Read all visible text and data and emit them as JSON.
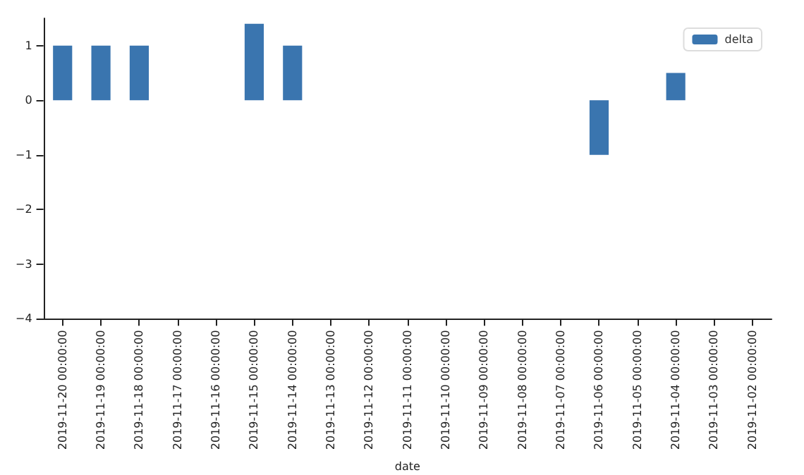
{
  "chart_data": {
    "type": "bar",
    "xlabel": "date",
    "categories": [
      "2019-11-20 00:00:00",
      "2019-11-19 00:00:00",
      "2019-11-18 00:00:00",
      "2019-11-17 00:00:00",
      "2019-11-16 00:00:00",
      "2019-11-15 00:00:00",
      "2019-11-14 00:00:00",
      "2019-11-13 00:00:00",
      "2019-11-12 00:00:00",
      "2019-11-11 00:00:00",
      "2019-11-10 00:00:00",
      "2019-11-09 00:00:00",
      "2019-11-08 00:00:00",
      "2019-11-07 00:00:00",
      "2019-11-06 00:00:00",
      "2019-11-05 00:00:00",
      "2019-11-04 00:00:00",
      "2019-11-03 00:00:00",
      "2019-11-02 00:00:00"
    ],
    "series": [
      {
        "name": "delta",
        "color": "#3a75af",
        "values": [
          1,
          1,
          1,
          0,
          0,
          1.4,
          1,
          0,
          0,
          0,
          0,
          0,
          0,
          0,
          -1,
          0,
          0.5,
          0,
          0
        ]
      }
    ],
    "ylim": [
      -4,
      1.5
    ],
    "yticks": [
      -4,
      -3,
      -2,
      -1,
      0,
      1
    ],
    "grid": false,
    "legend": "top right"
  }
}
